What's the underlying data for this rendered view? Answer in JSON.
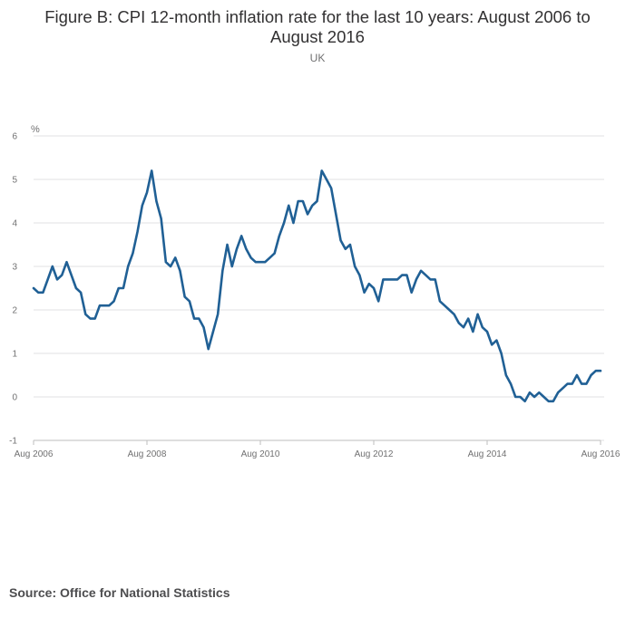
{
  "header": {
    "title": "Figure B: CPI 12-month inflation rate for the last 10 years: August 2006 to August 2016",
    "subtitle": "UK"
  },
  "footer": {
    "source": "Source: Office for National Statistics"
  },
  "colors": {
    "line": "#206095",
    "grid": "#e2e2e3",
    "axis": "#bdbdbd"
  },
  "chart_data": {
    "type": "line",
    "title": "Figure B: CPI 12-month inflation rate for the last 10 years: August 2006 to August 2016",
    "subtitle": "UK",
    "ylabel": "%",
    "ylim": [
      -1,
      6
    ],
    "yticks": [
      "-1",
      "0",
      "1",
      "2",
      "3",
      "4",
      "5",
      "6"
    ],
    "xticks": [
      "Aug 2006",
      "Aug 2008",
      "Aug 2010",
      "Aug 2012",
      "Aug 2014",
      "Aug 2016"
    ],
    "grid": true,
    "series": [
      {
        "values": [
          2.5,
          2.4,
          2.4,
          2.7,
          3.0,
          2.7,
          2.8,
          3.1,
          2.8,
          2.5,
          2.4,
          1.9,
          1.8,
          1.8,
          2.1,
          2.1,
          2.1,
          2.2,
          2.5,
          2.5,
          3.0,
          3.3,
          3.8,
          4.4,
          4.7,
          5.2,
          4.5,
          4.1,
          3.1,
          3.0,
          3.2,
          2.9,
          2.3,
          2.2,
          1.8,
          1.8,
          1.6,
          1.1,
          1.5,
          1.9,
          2.9,
          3.5,
          3.0,
          3.4,
          3.7,
          3.4,
          3.2,
          3.1,
          3.1,
          3.1,
          3.2,
          3.3,
          3.7,
          4.0,
          4.4,
          4.0,
          4.5,
          4.5,
          4.2,
          4.4,
          4.5,
          5.2,
          5.0,
          4.8,
          4.2,
          3.6,
          3.4,
          3.5,
          3.0,
          2.8,
          2.4,
          2.6,
          2.5,
          2.2,
          2.7,
          2.7,
          2.7,
          2.7,
          2.8,
          2.8,
          2.4,
          2.7,
          2.9,
          2.8,
          2.7,
          2.7,
          2.2,
          2.1,
          2.0,
          1.9,
          1.7,
          1.6,
          1.8,
          1.5,
          1.9,
          1.6,
          1.5,
          1.2,
          1.3,
          1.0,
          0.5,
          0.3,
          0.0,
          0.0,
          -0.1,
          0.1,
          0.0,
          0.1,
          0.0,
          -0.1,
          -0.1,
          0.1,
          0.2,
          0.3,
          0.3,
          0.5,
          0.3,
          0.3,
          0.5,
          0.6,
          0.6
        ]
      }
    ]
  }
}
